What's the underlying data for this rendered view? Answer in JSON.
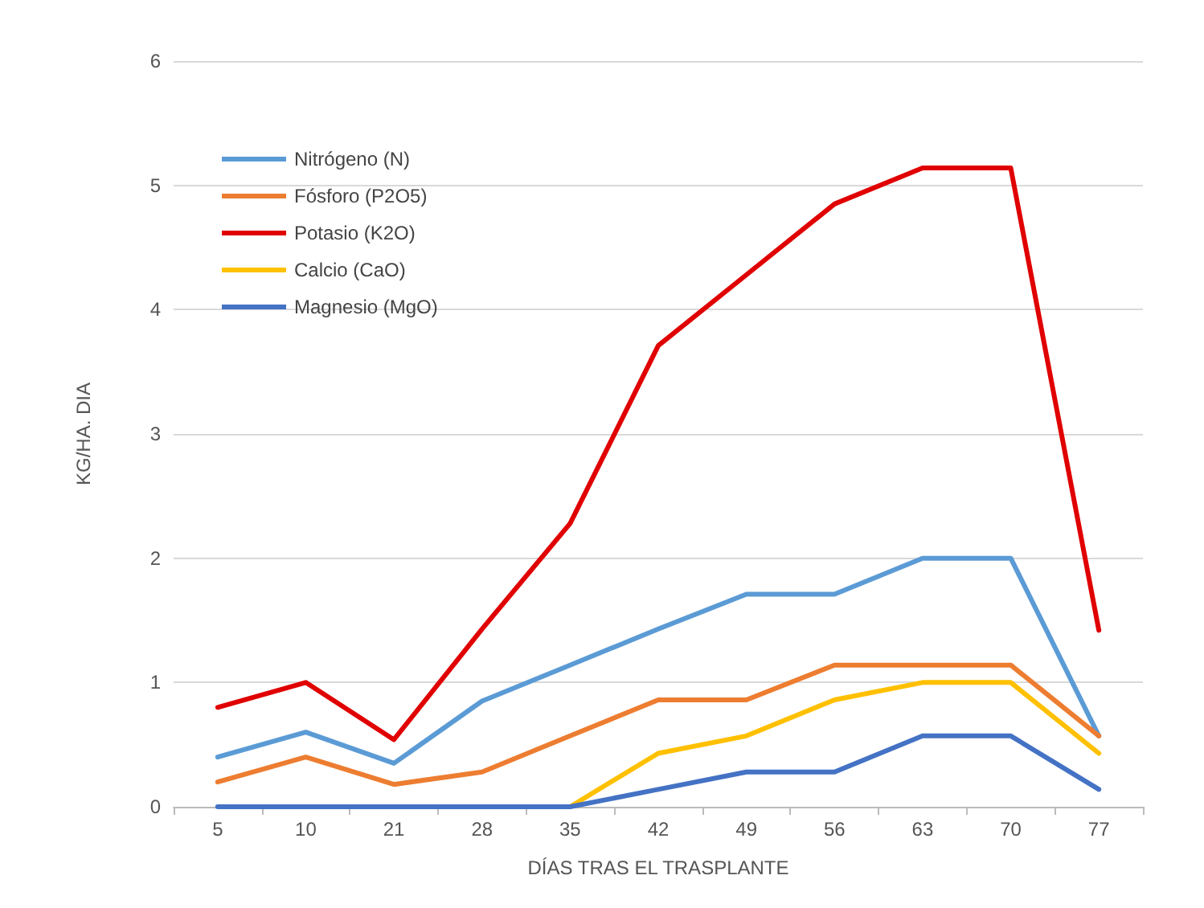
{
  "chart_data": {
    "type": "line",
    "xlabel": "DÍAS TRAS EL TRASPLANTE",
    "ylabel": "KG/HA. DIA",
    "categories": [
      "5",
      "10",
      "21",
      "28",
      "35",
      "42",
      "49",
      "56",
      "63",
      "70",
      "77"
    ],
    "series": [
      {
        "name": "Nitrógeno (N)",
        "color": "#5b9bd5",
        "values": [
          0.4,
          0.6,
          0.35,
          0.85,
          1.14,
          1.43,
          1.71,
          1.71,
          2.0,
          2.0,
          0.57
        ]
      },
      {
        "name": "Fósforo (P2O5)",
        "color": "#ed7d31",
        "values": [
          0.2,
          0.4,
          0.18,
          0.28,
          0.57,
          0.86,
          0.86,
          1.14,
          1.14,
          1.14,
          0.57
        ]
      },
      {
        "name": "Potasio (K2O)",
        "color": "#e00000",
        "values": [
          0.8,
          1.0,
          0.54,
          1.43,
          2.28,
          3.71,
          4.28,
          4.85,
          5.14,
          5.14,
          1.42
        ]
      },
      {
        "name": "Calcio (CaO)",
        "color": "#ffc000",
        "values": [
          null,
          null,
          null,
          null,
          0,
          0.43,
          0.57,
          0.86,
          1.0,
          1.0,
          0.43
        ]
      },
      {
        "name": "Magnesio (MgO)",
        "color": "#4472c4",
        "values": [
          0,
          0,
          0,
          0,
          0,
          0.14,
          0.28,
          0.28,
          0.57,
          0.57,
          0.14
        ]
      }
    ],
    "ylim": [
      0,
      6
    ],
    "yticks": [
      0,
      1,
      2,
      3,
      4,
      5,
      6
    ],
    "grid": "y",
    "legend": "top left",
    "marker": "none",
    "line_style": "solid"
  }
}
